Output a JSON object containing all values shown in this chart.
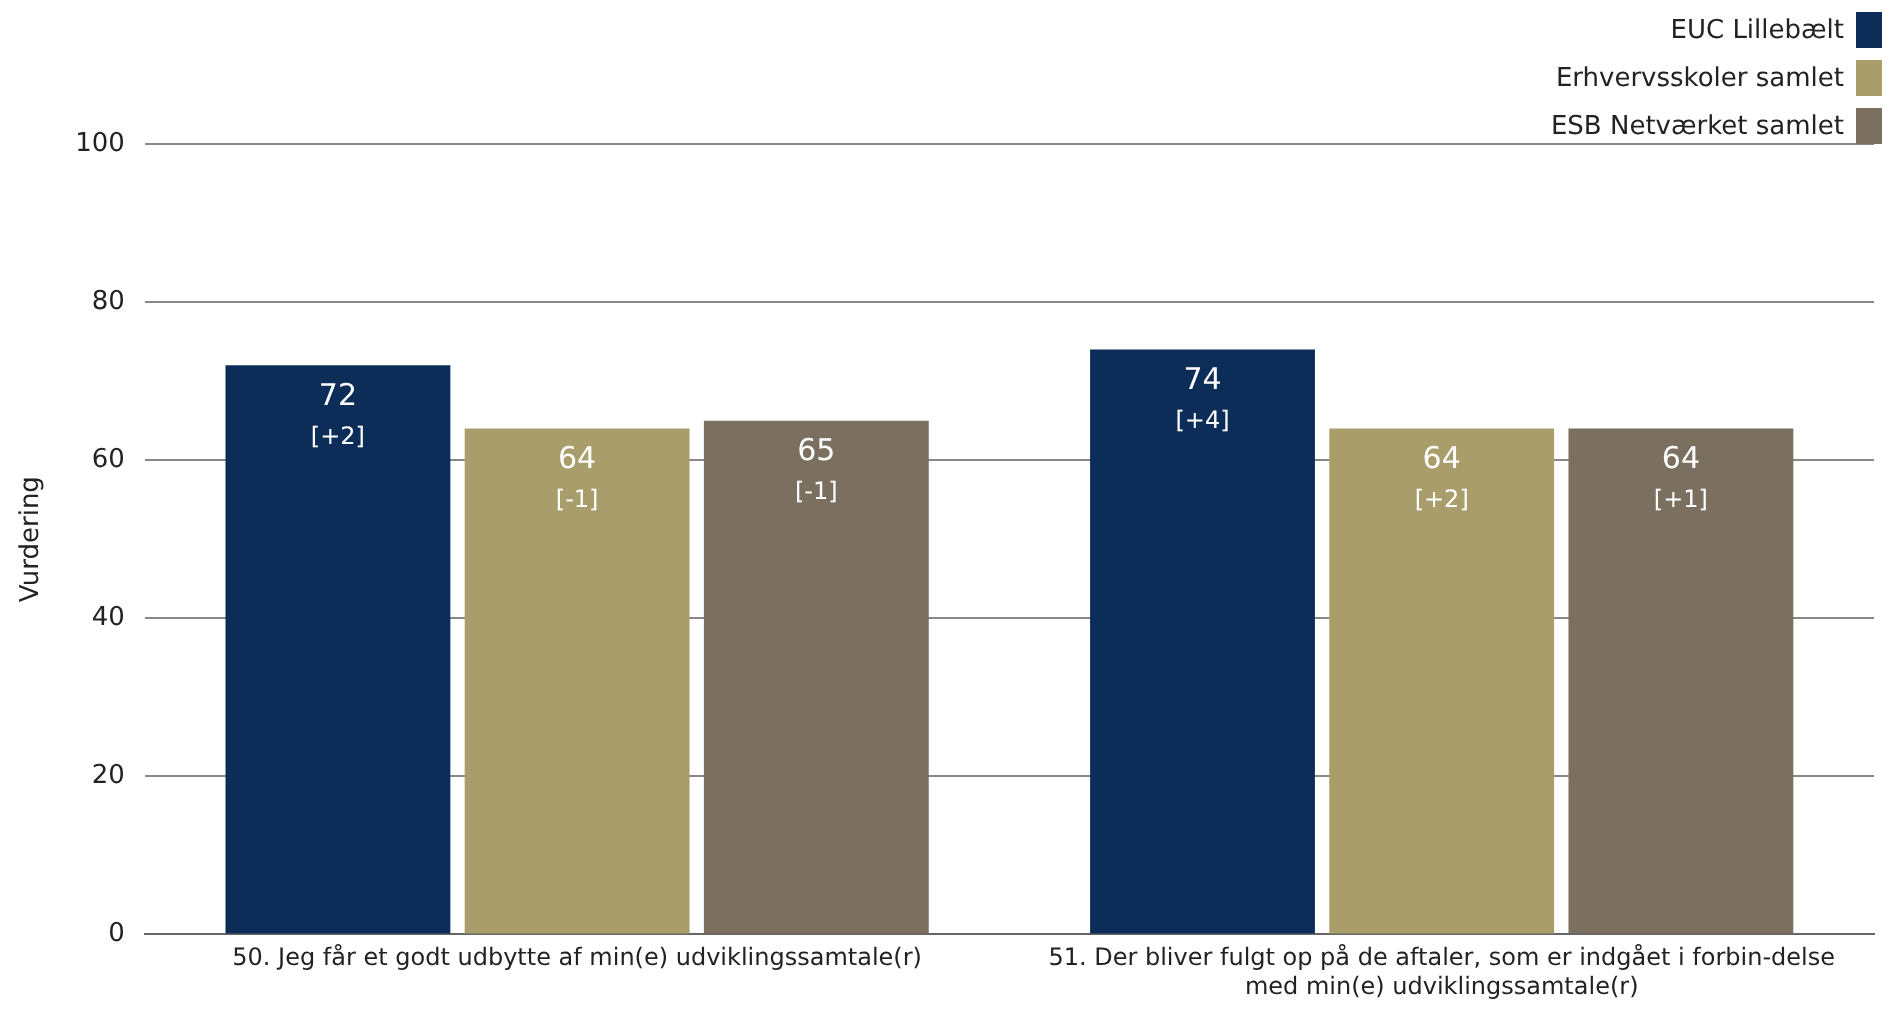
{
  "chart_data": {
    "type": "bar",
    "ylabel": "Vurdering",
    "categories": [
      "50. Jeg får et godt udbytte af min(e) udviklingssamtale(r)",
      "51. Der bliver fulgt op på de aftaler, som er indgået i forbin-delse med min(e) udviklingssamtale(r)"
    ],
    "series": [
      {
        "name": "EUC Lillebælt",
        "color": "#0b2d57",
        "values": [
          72,
          74
        ],
        "value_labels": [
          "72 [+2]",
          "74 [+4]"
        ]
      },
      {
        "name": "Erhvervsskoler samlet",
        "color": "#a99d6c",
        "values": [
          64,
          64
        ],
        "value_labels": [
          "64 [-1]",
          "64 [+2]"
        ]
      },
      {
        "name": "ESB Netværket samlet",
        "color": "#7b6f5f",
        "values": [
          65,
          64
        ],
        "value_labels": [
          "65 [-1]",
          "64 [+1]"
        ]
      }
    ],
    "ylim": [
      0,
      100
    ],
    "yticks": [
      0,
      20,
      40,
      60,
      80,
      100
    ],
    "grid": "y",
    "legend": "top right"
  }
}
